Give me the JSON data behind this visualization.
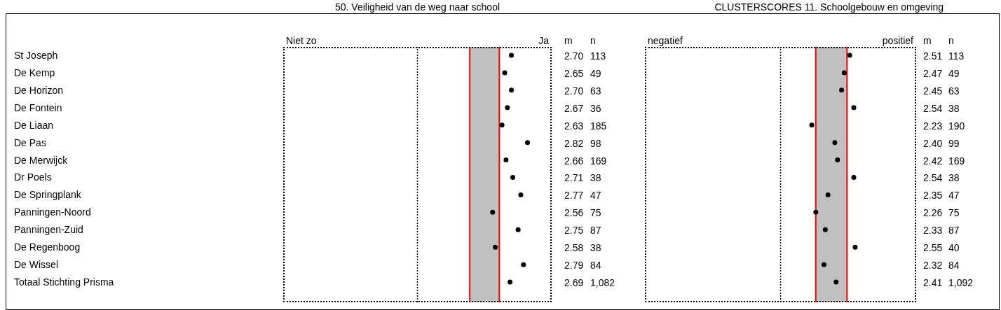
{
  "chart_data": [
    {
      "type": "scatter",
      "orientation": "horizontal",
      "title": "50. Veiligheid van de weg naar school",
      "categories": [
        "St Joseph",
        "De Kemp",
        "De Horizon",
        "De Fontein",
        "De Liaan",
        "De Pas",
        "De Merwijck",
        "Dr Poels",
        "De Springplank",
        "Panningen-Noord",
        "Panningen-Zuid",
        "De Regenboog",
        "De Wissel",
        "Totaal Stichting Prisma"
      ],
      "series": [
        {
          "name": "m",
          "color": "#000000",
          "values": [
            2.7,
            2.65,
            2.7,
            2.67,
            2.63,
            2.82,
            2.66,
            2.71,
            2.77,
            2.56,
            2.75,
            2.58,
            2.79,
            2.69
          ],
          "value_labels": [
            "2.70",
            "2.65",
            "2.70",
            "2.67",
            "2.63",
            "2.82",
            "2.66",
            "2.71",
            "2.77",
            "2.56",
            "2.75",
            "2.58",
            "2.79",
            "2.69"
          ]
        }
      ],
      "xlim": [
        1,
        3
      ],
      "marker": "circle",
      "annotations": [
        "Niet zo",
        "Ja"
      ],
      "bands": [
        {
          "axis": "x",
          "from": 2.39,
          "to": 2.61,
          "color": "#c0c0c0"
        }
      ],
      "ref_lines": [
        {
          "axis": "x",
          "value": 2,
          "color": "#000000",
          "line_style": "dotted"
        },
        {
          "axis": "x",
          "value": 2.39,
          "color": "#ff0000"
        },
        {
          "axis": "x",
          "value": 2.61,
          "color": "#ff0000"
        }
      ]
    },
    {
      "type": "other",
      "title": "n",
      "values": [
        113,
        49,
        63,
        36,
        185,
        98,
        169,
        38,
        47,
        75,
        87,
        38,
        84,
        1082
      ],
      "value_labels": [
        "113",
        "49",
        "63",
        "36",
        "185",
        "98",
        "169",
        "38",
        "47",
        "75",
        "87",
        "38",
        "84",
        "1,082"
      ]
    },
    {
      "type": "scatter",
      "orientation": "horizontal",
      "title": "CLUSTERSCORES 11. Schoolgebouw en omgeving",
      "series": [
        {
          "name": "m",
          "color": "#000000",
          "values": [
            2.51,
            2.47,
            2.45,
            2.54,
            2.23,
            2.4,
            2.42,
            2.54,
            2.35,
            2.26,
            2.33,
            2.55,
            2.32,
            2.41
          ],
          "value_labels": [
            "2.51",
            "2.47",
            "2.45",
            "2.54",
            "2.23",
            "2.40",
            "2.42",
            "2.54",
            "2.35",
            "2.26",
            "2.33",
            "2.55",
            "2.32",
            "2.41"
          ]
        }
      ],
      "xlim": [
        1,
        3
      ],
      "marker": "circle",
      "annotations": [
        "negatief",
        "positief"
      ],
      "bands": [
        {
          "axis": "x",
          "from": 2.26,
          "to": 2.49,
          "color": "#c0c0c0"
        }
      ],
      "ref_lines": [
        {
          "axis": "x",
          "value": 2,
          "color": "#000000",
          "line_style": "dotted"
        },
        {
          "axis": "x",
          "value": 2.26,
          "color": "#ff0000"
        },
        {
          "axis": "x",
          "value": 2.49,
          "color": "#ff0000"
        }
      ]
    },
    {
      "type": "other",
      "title": "n",
      "values": [
        113,
        49,
        63,
        38,
        190,
        99,
        169,
        38,
        47,
        75,
        87,
        40,
        84,
        1092
      ],
      "value_labels": [
        "113",
        "49",
        "63",
        "38",
        "190",
        "99",
        "169",
        "38",
        "47",
        "75",
        "87",
        "40",
        "84",
        "1,092"
      ]
    }
  ]
}
